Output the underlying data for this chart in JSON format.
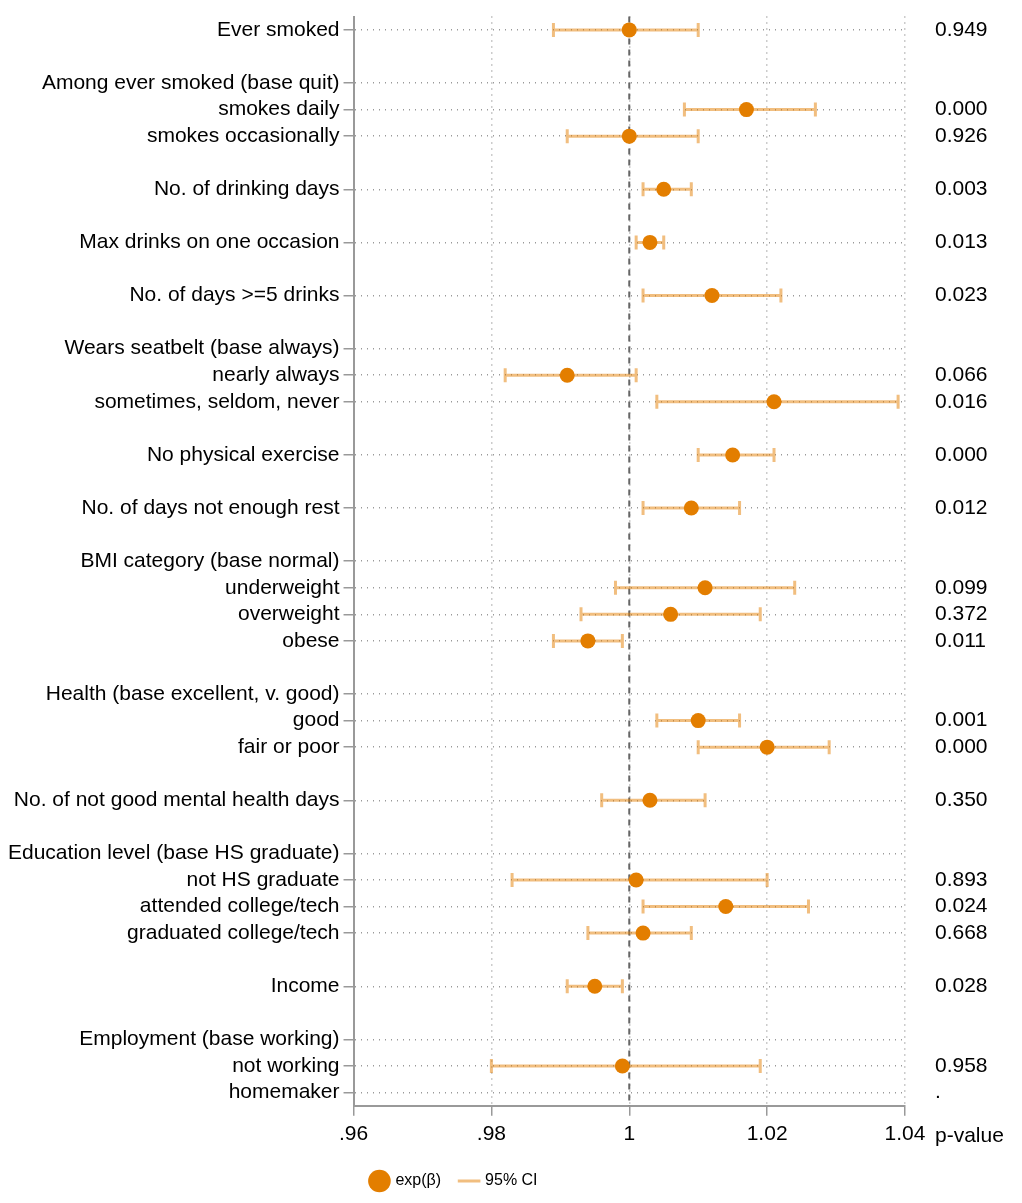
{
  "chart_data": {
    "type": "scatter",
    "orientation": "horizontal",
    "categories": [
      "Ever smoked",
      null,
      "Among ever smoked (base quit)",
      "smokes daily",
      "smokes occasionally",
      null,
      "No. of drinking days",
      null,
      "Max drinks on one occasion",
      null,
      "No. of days >=5 drinks",
      null,
      "Wears seatbelt (base always)",
      "nearly always",
      "sometimes, seldom, never",
      null,
      "No physical exercise",
      null,
      "No. of days not enough rest",
      null,
      "BMI category (base normal)",
      "underweight",
      "overweight",
      "obese",
      null,
      "Health (base excellent, v. good)",
      "good",
      "fair or poor",
      null,
      "No. of not good mental health days",
      null,
      "Education level (base HS graduate)",
      "not HS graduate",
      "attended college/tech",
      "graduated college/tech",
      null,
      "Income",
      null,
      "Employment (base working)",
      "not working",
      "homemaker"
    ],
    "series": [
      {
        "name": "exp(β)",
        "color": "#e37e00",
        "values": [
          1.0,
          null,
          null,
          1.017,
          1.0,
          null,
          1.005,
          null,
          1.003,
          null,
          1.012,
          null,
          null,
          0.991,
          1.021,
          null,
          1.015,
          null,
          1.009,
          null,
          null,
          1.011,
          1.006,
          0.994,
          null,
          null,
          1.01,
          1.02,
          null,
          1.003,
          null,
          null,
          1.001,
          1.014,
          1.002,
          null,
          0.995,
          null,
          null,
          0.999,
          null
        ],
        "errors": [
          [
            0.989,
            1.01
          ],
          null,
          null,
          [
            1.008,
            1.027
          ],
          [
            0.991,
            1.01
          ],
          null,
          [
            1.002,
            1.009
          ],
          null,
          [
            1.001,
            1.005
          ],
          null,
          [
            1.002,
            1.022
          ],
          null,
          null,
          [
            0.982,
            1.001
          ],
          [
            1.004,
            1.039
          ],
          null,
          [
            1.01,
            1.021
          ],
          null,
          [
            1.002,
            1.016
          ],
          null,
          null,
          [
            0.998,
            1.024
          ],
          [
            0.993,
            1.019
          ],
          [
            0.989,
            0.999
          ],
          null,
          null,
          [
            1.004,
            1.016
          ],
          [
            1.01,
            1.029
          ],
          null,
          [
            0.996,
            1.011
          ],
          null,
          null,
          [
            0.983,
            1.02
          ],
          [
            1.002,
            1.026
          ],
          [
            0.994,
            1.009
          ],
          null,
          [
            0.991,
            0.999
          ],
          null,
          null,
          [
            0.98,
            1.019
          ],
          null
        ]
      }
    ],
    "marker": "circle",
    "xlim": [
      0.96,
      1.04
    ],
    "xticks": [
      {
        "value": 0.96,
        "label": ".96"
      },
      {
        "value": 0.98,
        "label": ".98"
      },
      1,
      1.02,
      1.04
    ],
    "grid": true,
    "line_style": "dotted",
    "legend": "bottom",
    "ref_lines": [
      {
        "axis": "x",
        "value": 1,
        "color": "#666666",
        "line_style": "dashed"
      }
    ],
    "annotations": [
      "p-value",
      "95% CI",
      "0.949",
      "0.000",
      "0.926",
      "0.003",
      "0.013",
      "0.023",
      "0.066",
      "0.016",
      "0.000",
      "0.012",
      "0.099",
      "0.372",
      "0.011",
      "0.001",
      "0.000",
      "0.350",
      "0.893",
      "0.024",
      "0.668",
      "0.028",
      "0.958",
      "."
    ]
  }
}
